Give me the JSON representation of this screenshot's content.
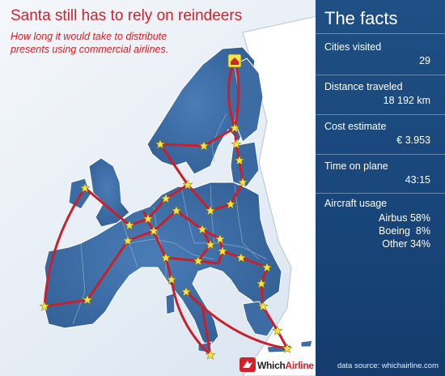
{
  "title": "Santa still has to rely on reindeers",
  "subtitle": "How long it would take to distribute presents using commercial airlines.",
  "facts_title": "The facts",
  "facts": [
    {
      "label": "Cities visited",
      "value": "29"
    },
    {
      "label": "Distance traveled",
      "value": "18 192 km"
    },
    {
      "label": "Cost estimate",
      "value": "€ 3.953"
    },
    {
      "label": "Time on plane",
      "value": "43:15"
    }
  ],
  "aircraft_usage": {
    "label": "Aircraft usage",
    "rows": [
      {
        "name": "Airbus",
        "pct": "58%"
      },
      {
        "name": "Boeing",
        "pct": " 8%"
      },
      {
        "name": "Other",
        "pct": "34%"
      }
    ]
  },
  "source": "data source: whichairline.com",
  "logo": {
    "which": "Which",
    "airline": "Airline"
  },
  "colors": {
    "title": "#d42027",
    "route": "#c8202b",
    "land_eu": "#3f6fa8",
    "land_other": "#ffffff",
    "sea": "#d8e4ef",
    "panel": "#1a4a7e",
    "star": "#f7e44a"
  },
  "icons": {
    "start": "house-icon",
    "city": "star-icon"
  }
}
